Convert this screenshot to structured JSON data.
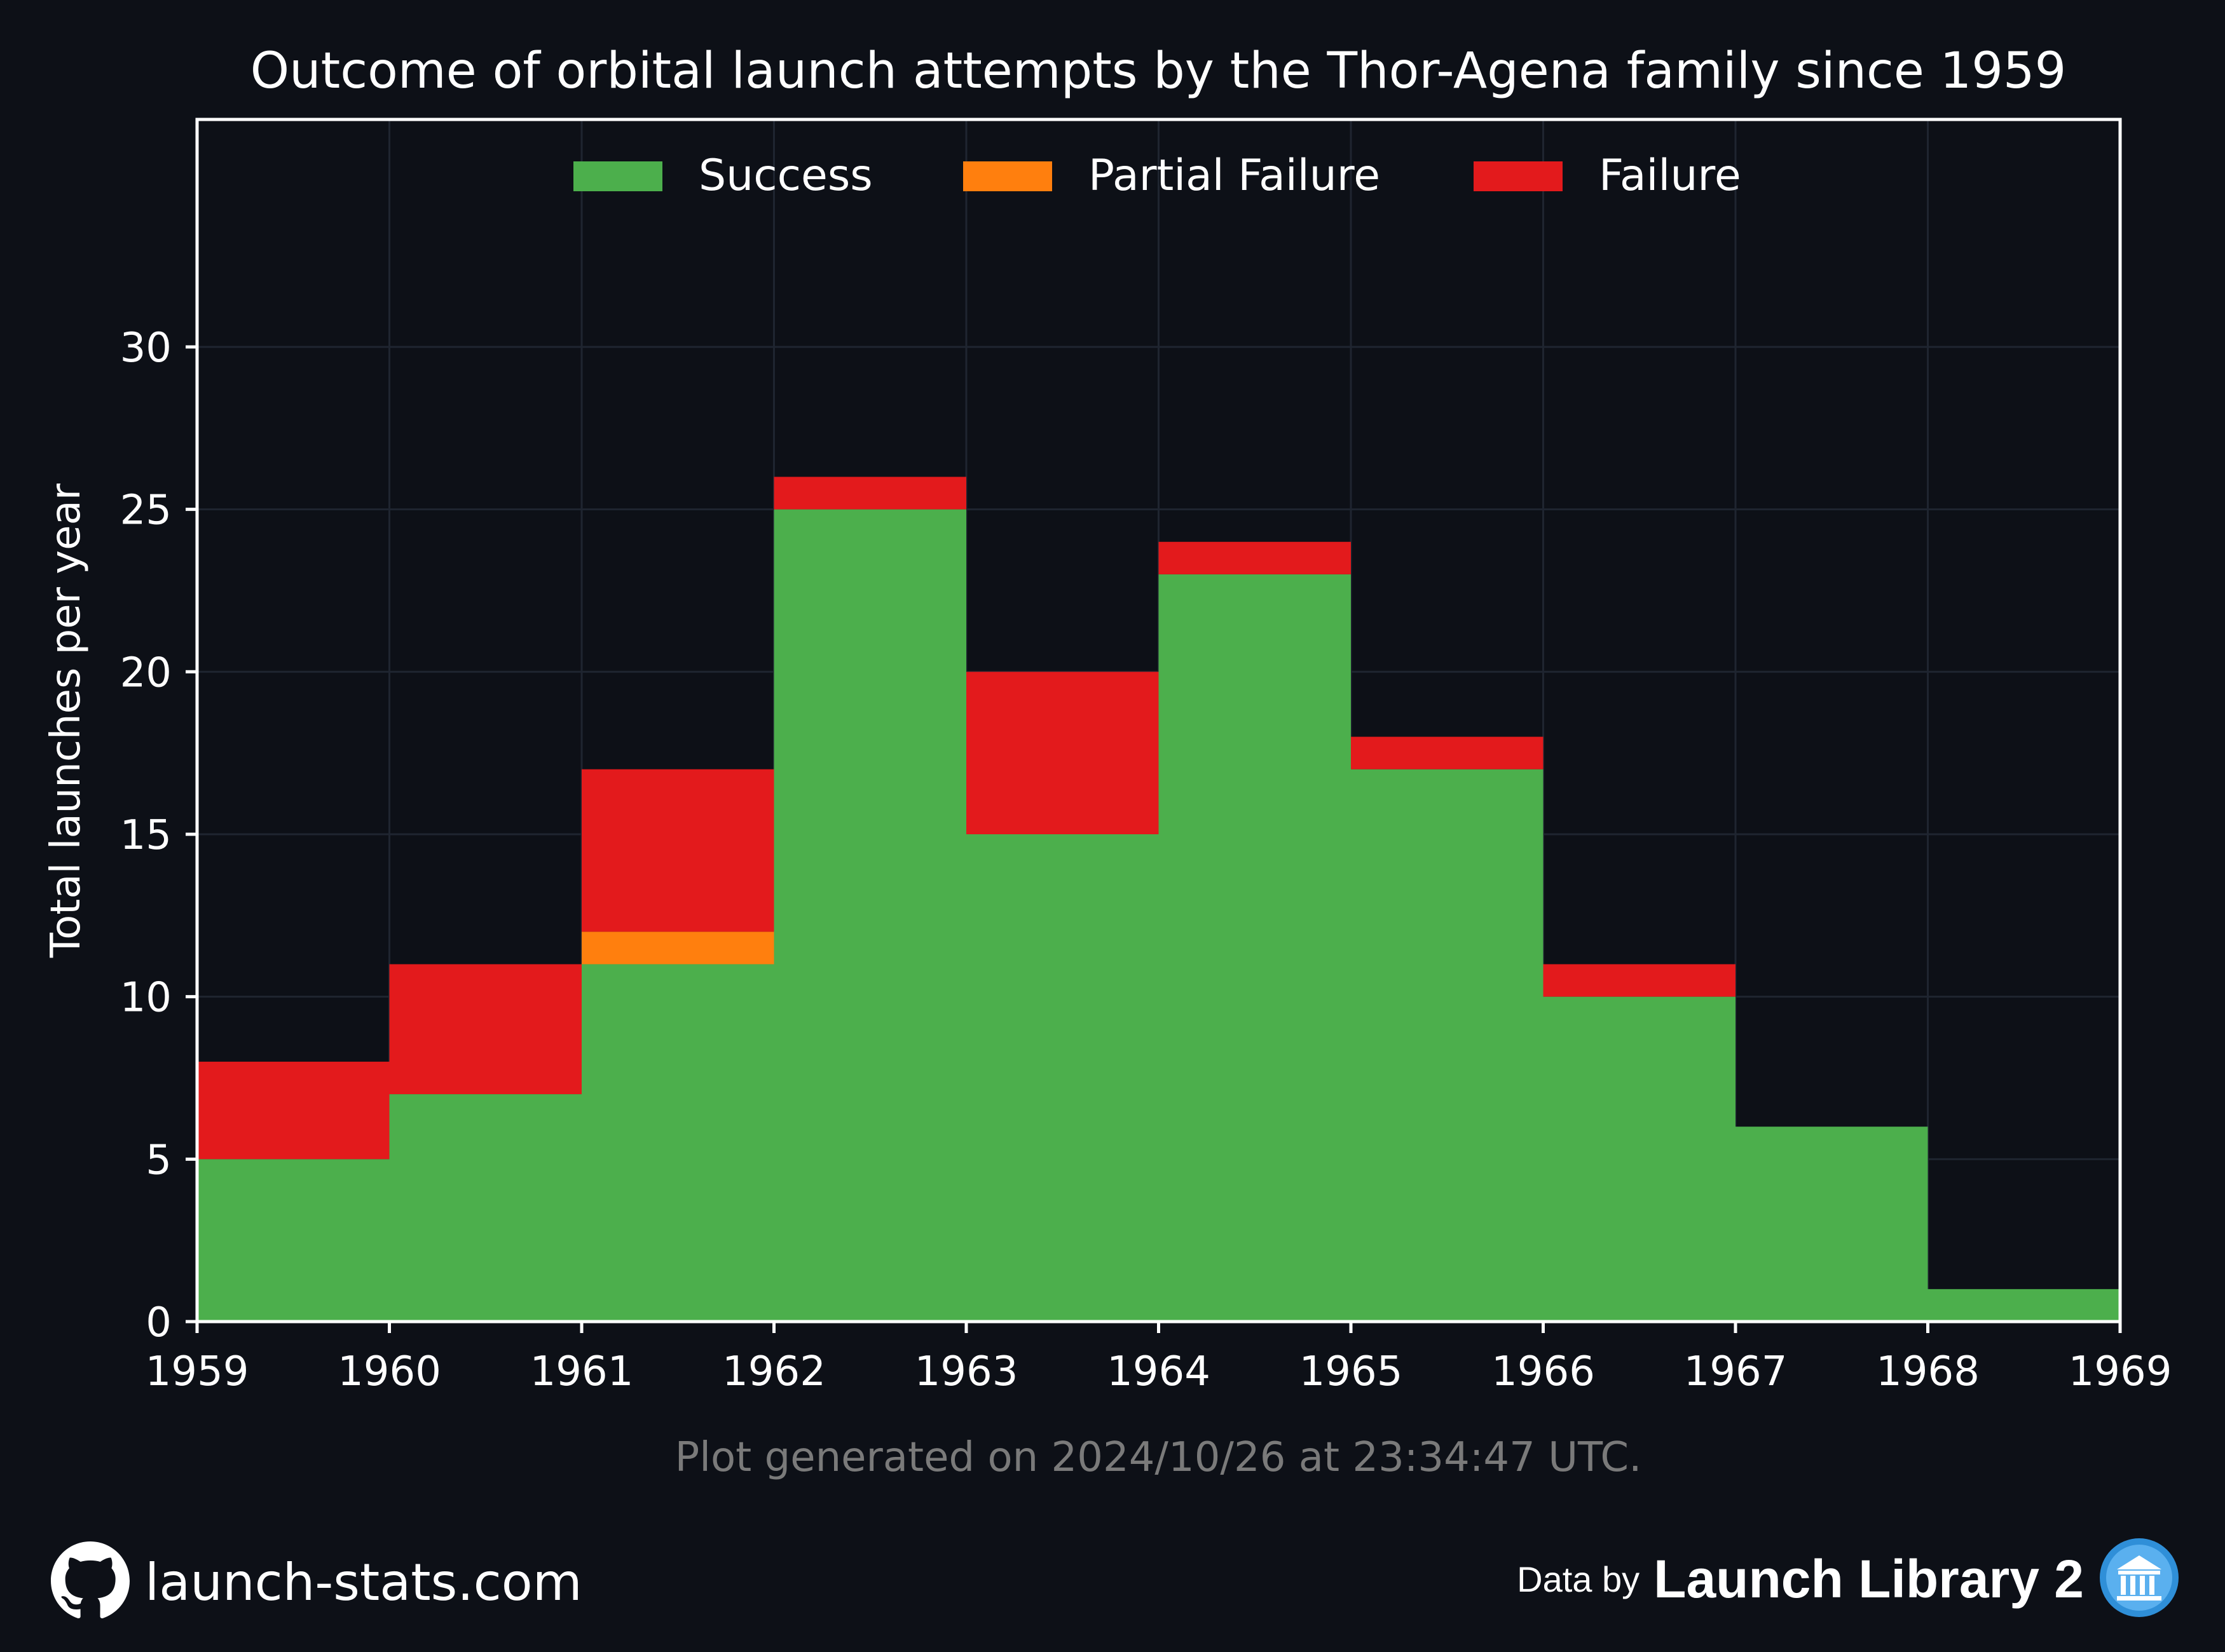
{
  "chart_data": {
    "type": "bar",
    "stacked": true,
    "step_histogram": true,
    "title": "Outcome of orbital launch attempts by the Thor-Agena family since 1959",
    "xlabel": "",
    "ylabel": "Total launches per year",
    "x_bins": [
      1959,
      1960,
      1961,
      1962,
      1963,
      1964,
      1965,
      1966,
      1967,
      1968
    ],
    "x_ticks": [
      "1959",
      "1960",
      "1961",
      "1962",
      "1963",
      "1964",
      "1965",
      "1966",
      "1967",
      "1968",
      "1969"
    ],
    "xlim": [
      1959,
      1969
    ],
    "ylim": [
      0,
      37
    ],
    "y_ticks": [
      "0",
      "5",
      "10",
      "15",
      "20",
      "25",
      "30"
    ],
    "series": [
      {
        "name": "Success",
        "color": "#4caf4c",
        "values": [
          5,
          7,
          11,
          25,
          15,
          23,
          17,
          10,
          6,
          1
        ]
      },
      {
        "name": "Partial Failure",
        "color": "#ff7f0e",
        "values": [
          0,
          0,
          1,
          0,
          0,
          0,
          0,
          0,
          0,
          0
        ]
      },
      {
        "name": "Failure",
        "color": "#e31a1c",
        "values": [
          3,
          4,
          5,
          1,
          5,
          1,
          1,
          1,
          0,
          0
        ]
      }
    ],
    "grid": true,
    "legend_position": "top"
  },
  "caption": "Plot generated on 2024/10/26 at 23:34:47 UTC.",
  "footer": {
    "site": "launch-stats.com",
    "data_by": "Data by",
    "library": "Launch Library 2",
    "site_icon": "github-icon",
    "library_icon": "library-icon"
  },
  "colors": {
    "background": "#0d1017",
    "axis": "#ffffff",
    "grid": "#1f2530",
    "caption": "#7a7a7a"
  }
}
